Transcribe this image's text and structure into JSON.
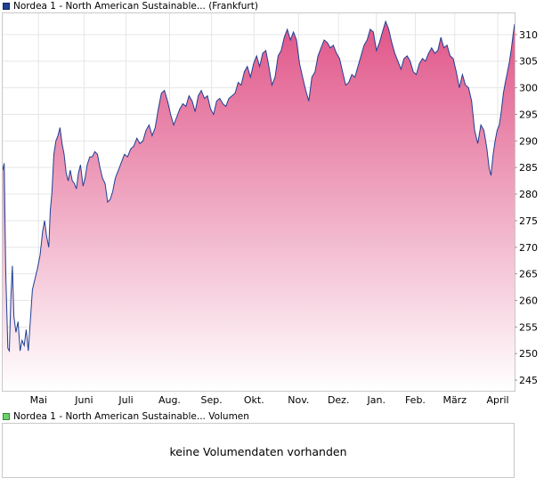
{
  "price_legend": {
    "label": "Nordea 1 - North American Sustainable... (Frankfurt)",
    "color": "#1f3f93"
  },
  "volume_legend": {
    "label": "Nordea 1 - North American Sustainable... Volumen",
    "color": "#6fd06f"
  },
  "volume_panel": {
    "message": "keine Volumendaten vorhanden"
  },
  "colors": {
    "line": "#1f3f93",
    "fill_top": "#e05588",
    "fill_bottom": "#ffffff",
    "grid": "#e6e6e6",
    "border": "#c8c8c8"
  },
  "chart_data": {
    "type": "area",
    "y_axis_position": "right",
    "ylim": [
      243,
      314
    ],
    "y_ticks": [
      245,
      250,
      255,
      260,
      265,
      270,
      275,
      280,
      285,
      290,
      295,
      300,
      305,
      310
    ],
    "grid": true,
    "x_ticks": [
      {
        "label": "Mai",
        "t": 0.07
      },
      {
        "label": "Juni",
        "t": 0.159
      },
      {
        "label": "Juli",
        "t": 0.241
      },
      {
        "label": "Aug.",
        "t": 0.326
      },
      {
        "label": "Sep.",
        "t": 0.408
      },
      {
        "label": "Okt.",
        "t": 0.491
      },
      {
        "label": "Nov.",
        "t": 0.578
      },
      {
        "label": "Dez.",
        "t": 0.656
      },
      {
        "label": "Jan.",
        "t": 0.73
      },
      {
        "label": "Feb.",
        "t": 0.806
      },
      {
        "label": "März",
        "t": 0.883
      },
      {
        "label": "April",
        "t": 0.967
      }
    ],
    "series": [
      {
        "points": [
          [
            0.0,
            284.5
          ],
          [
            0.003,
            285.8
          ],
          [
            0.006,
            265.0
          ],
          [
            0.01,
            251.0
          ],
          [
            0.013,
            250.5
          ],
          [
            0.016,
            260.5
          ],
          [
            0.019,
            266.5
          ],
          [
            0.022,
            257.0
          ],
          [
            0.026,
            254.0
          ],
          [
            0.03,
            256.0
          ],
          [
            0.034,
            250.5
          ],
          [
            0.038,
            252.5
          ],
          [
            0.042,
            251.5
          ],
          [
            0.046,
            254.5
          ],
          [
            0.05,
            250.5
          ],
          [
            0.054,
            256.0
          ],
          [
            0.058,
            262.0
          ],
          [
            0.063,
            264.0
          ],
          [
            0.068,
            266.0
          ],
          [
            0.073,
            268.5
          ],
          [
            0.078,
            273.0
          ],
          [
            0.082,
            275.0
          ],
          [
            0.086,
            272.0
          ],
          [
            0.09,
            270.0
          ],
          [
            0.093,
            277.0
          ],
          [
            0.096,
            280.0
          ],
          [
            0.1,
            287.5
          ],
          [
            0.104,
            290.0
          ],
          [
            0.108,
            291.0
          ],
          [
            0.112,
            292.5
          ],
          [
            0.116,
            289.5
          ],
          [
            0.12,
            287.5
          ],
          [
            0.124,
            284.0
          ],
          [
            0.128,
            282.5
          ],
          [
            0.132,
            284.5
          ],
          [
            0.136,
            282.5
          ],
          [
            0.14,
            282.0
          ],
          [
            0.144,
            281.0
          ],
          [
            0.148,
            284.0
          ],
          [
            0.152,
            285.5
          ],
          [
            0.157,
            281.5
          ],
          [
            0.161,
            283.0
          ],
          [
            0.165,
            285.5
          ],
          [
            0.17,
            287.0
          ],
          [
            0.175,
            287.0
          ],
          [
            0.18,
            288.0
          ],
          [
            0.185,
            287.5
          ],
          [
            0.19,
            285.0
          ],
          [
            0.195,
            283.0
          ],
          [
            0.2,
            282.0
          ],
          [
            0.205,
            278.5
          ],
          [
            0.21,
            279.0
          ],
          [
            0.215,
            280.5
          ],
          [
            0.22,
            283.0
          ],
          [
            0.226,
            284.5
          ],
          [
            0.232,
            286.0
          ],
          [
            0.238,
            287.5
          ],
          [
            0.244,
            287.0
          ],
          [
            0.25,
            288.5
          ],
          [
            0.256,
            289.0
          ],
          [
            0.262,
            290.5
          ],
          [
            0.268,
            289.5
          ],
          [
            0.274,
            290.0
          ],
          [
            0.28,
            292.0
          ],
          [
            0.286,
            293.0
          ],
          [
            0.292,
            291.0
          ],
          [
            0.298,
            292.5
          ],
          [
            0.304,
            296.0
          ],
          [
            0.31,
            299.0
          ],
          [
            0.316,
            299.5
          ],
          [
            0.322,
            297.5
          ],
          [
            0.328,
            295.0
          ],
          [
            0.334,
            293.0
          ],
          [
            0.34,
            294.5
          ],
          [
            0.346,
            296.0
          ],
          [
            0.352,
            297.0
          ],
          [
            0.358,
            296.5
          ],
          [
            0.364,
            298.5
          ],
          [
            0.37,
            297.5
          ],
          [
            0.376,
            295.5
          ],
          [
            0.382,
            298.5
          ],
          [
            0.388,
            299.5
          ],
          [
            0.394,
            298.0
          ],
          [
            0.4,
            298.5
          ],
          [
            0.406,
            296.0
          ],
          [
            0.412,
            295.0
          ],
          [
            0.418,
            297.5
          ],
          [
            0.424,
            298.0
          ],
          [
            0.43,
            297.0
          ],
          [
            0.436,
            296.5
          ],
          [
            0.442,
            298.0
          ],
          [
            0.448,
            298.5
          ],
          [
            0.454,
            299.0
          ],
          [
            0.46,
            301.0
          ],
          [
            0.466,
            300.5
          ],
          [
            0.472,
            303.0
          ],
          [
            0.478,
            304.0
          ],
          [
            0.484,
            302.0
          ],
          [
            0.49,
            304.5
          ],
          [
            0.496,
            306.0
          ],
          [
            0.502,
            304.0
          ],
          [
            0.508,
            306.5
          ],
          [
            0.514,
            307.0
          ],
          [
            0.52,
            304.0
          ],
          [
            0.526,
            300.5
          ],
          [
            0.532,
            302.0
          ],
          [
            0.538,
            306.0
          ],
          [
            0.544,
            307.0
          ],
          [
            0.55,
            309.5
          ],
          [
            0.556,
            311.0
          ],
          [
            0.562,
            309.0
          ],
          [
            0.568,
            310.5
          ],
          [
            0.574,
            309.0
          ],
          [
            0.58,
            304.5
          ],
          [
            0.586,
            302.0
          ],
          [
            0.592,
            299.5
          ],
          [
            0.598,
            297.5
          ],
          [
            0.604,
            302.0
          ],
          [
            0.61,
            303.0
          ],
          [
            0.616,
            306.0
          ],
          [
            0.622,
            307.5
          ],
          [
            0.628,
            309.0
          ],
          [
            0.634,
            308.5
          ],
          [
            0.64,
            307.5
          ],
          [
            0.646,
            308.0
          ],
          [
            0.652,
            306.5
          ],
          [
            0.658,
            305.5
          ],
          [
            0.664,
            303.0
          ],
          [
            0.67,
            300.5
          ],
          [
            0.676,
            301.0
          ],
          [
            0.682,
            302.5
          ],
          [
            0.688,
            302.0
          ],
          [
            0.694,
            304.0
          ],
          [
            0.7,
            306.0
          ],
          [
            0.706,
            308.0
          ],
          [
            0.712,
            309.0
          ],
          [
            0.718,
            311.0
          ],
          [
            0.724,
            310.5
          ],
          [
            0.73,
            307.0
          ],
          [
            0.736,
            308.5
          ],
          [
            0.742,
            310.5
          ],
          [
            0.748,
            312.5
          ],
          [
            0.754,
            311.0
          ],
          [
            0.76,
            308.5
          ],
          [
            0.766,
            306.5
          ],
          [
            0.772,
            305.0
          ],
          [
            0.778,
            303.5
          ],
          [
            0.784,
            305.5
          ],
          [
            0.79,
            306.0
          ],
          [
            0.796,
            305.0
          ],
          [
            0.802,
            303.0
          ],
          [
            0.808,
            302.5
          ],
          [
            0.814,
            304.5
          ],
          [
            0.82,
            305.5
          ],
          [
            0.826,
            305.0
          ],
          [
            0.832,
            306.5
          ],
          [
            0.838,
            307.5
          ],
          [
            0.844,
            306.5
          ],
          [
            0.85,
            307.0
          ],
          [
            0.856,
            309.5
          ],
          [
            0.862,
            307.5
          ],
          [
            0.868,
            308.0
          ],
          [
            0.874,
            306.0
          ],
          [
            0.88,
            305.5
          ],
          [
            0.886,
            303.0
          ],
          [
            0.892,
            300.0
          ],
          [
            0.898,
            302.5
          ],
          [
            0.904,
            300.5
          ],
          [
            0.91,
            300.0
          ],
          [
            0.916,
            297.5
          ],
          [
            0.922,
            292.0
          ],
          [
            0.928,
            289.5
          ],
          [
            0.934,
            293.0
          ],
          [
            0.94,
            292.0
          ],
          [
            0.946,
            288.5
          ],
          [
            0.95,
            285.0
          ],
          [
            0.954,
            283.5
          ],
          [
            0.958,
            287.5
          ],
          [
            0.962,
            290.0
          ],
          [
            0.966,
            292.0
          ],
          [
            0.97,
            293.0
          ],
          [
            0.974,
            295.5
          ],
          [
            0.978,
            299.0
          ],
          [
            0.982,
            301.0
          ],
          [
            0.986,
            303.0
          ],
          [
            0.99,
            305.0
          ],
          [
            0.994,
            307.5
          ],
          [
            0.997,
            310.0
          ],
          [
            1.0,
            312.0
          ]
        ]
      }
    ]
  }
}
